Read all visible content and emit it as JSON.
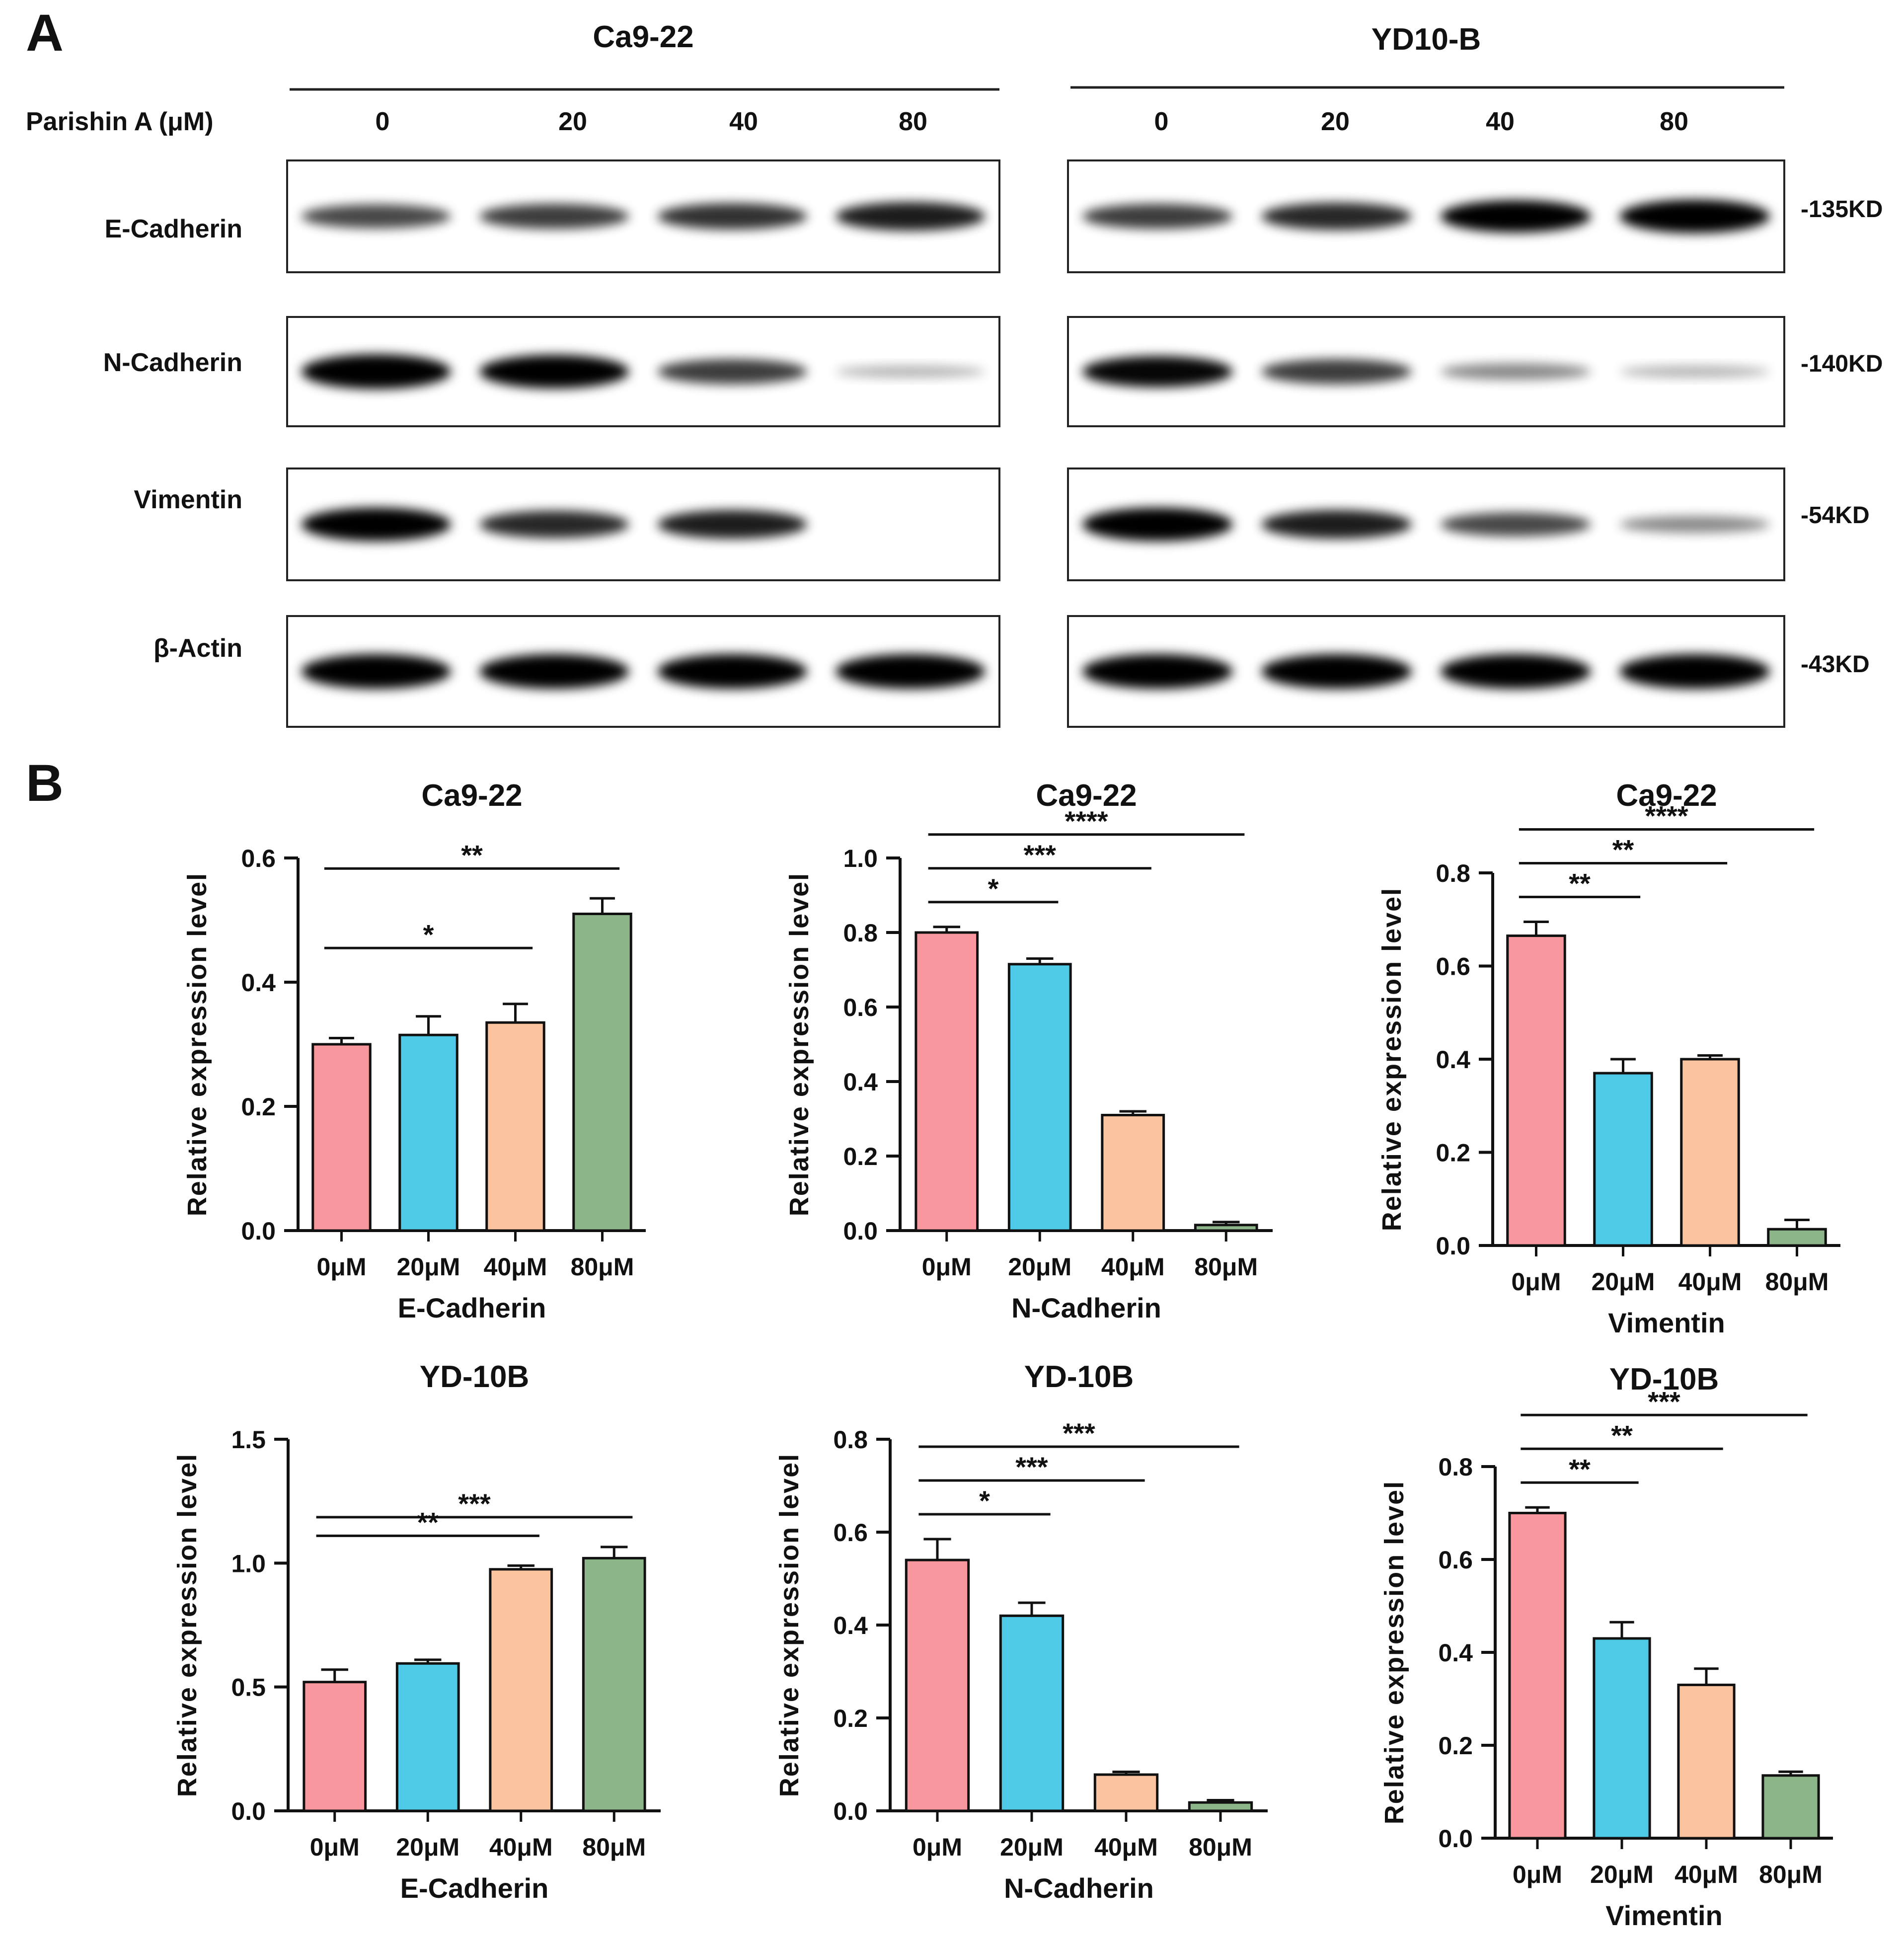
{
  "panel_a": {
    "label": "A",
    "treatment_label": "Parishin A (μM)",
    "cell_lines": [
      {
        "name": "Ca9-22",
        "doses": [
          "0",
          "20",
          "40",
          "80"
        ]
      },
      {
        "name": "YD10-B",
        "doses": [
          "0",
          "20",
          "40",
          "80"
        ]
      }
    ],
    "rows": [
      {
        "protein": "E-Cadherin",
        "weight": "-135KD",
        "band_intensity": [
          [
            0.55,
            0.6,
            0.65,
            0.75
          ],
          [
            0.6,
            0.7,
            0.9,
            0.95
          ]
        ]
      },
      {
        "protein": "N-Cadherin",
        "weight": "-140KD",
        "band_intensity": [
          [
            1.0,
            0.95,
            0.6,
            0.05
          ],
          [
            0.85,
            0.6,
            0.25,
            0.05
          ]
        ]
      },
      {
        "protein": "Vimentin",
        "weight": "-54KD",
        "band_intensity": [
          [
            0.95,
            0.7,
            0.75,
            0.0
          ],
          [
            0.95,
            0.75,
            0.55,
            0.25
          ]
        ]
      },
      {
        "protein": "β-Actin",
        "weight": "-43KD",
        "band_intensity": [
          [
            1.0,
            1.0,
            1.0,
            1.0
          ],
          [
            1.0,
            1.0,
            1.0,
            1.0
          ]
        ]
      }
    ]
  },
  "panel_b": {
    "label": "B",
    "colors": [
      "#f8979d",
      "#4ec9e6",
      "#fcc49e",
      "#8db58a"
    ]
  },
  "chart_data": [
    {
      "type": "bar",
      "title": "Ca9-22",
      "xlabel": "E-Cadherin",
      "ylabel": "Relative expression level",
      "categories": [
        "0μM",
        "20μM",
        "40μM",
        "80μM"
      ],
      "values": [
        0.3,
        0.315,
        0.335,
        0.51
      ],
      "errors": [
        0.01,
        0.03,
        0.03,
        0.025
      ],
      "ylim": [
        0,
        0.6
      ],
      "yticks": [
        "0.0",
        "0.2",
        "0.4",
        "0.6"
      ],
      "significance": [
        {
          "from": 0,
          "to": 2,
          "label": "*"
        },
        {
          "from": 0,
          "to": 3,
          "label": "**"
        }
      ]
    },
    {
      "type": "bar",
      "title": "Ca9-22",
      "xlabel": "N-Cadherin",
      "ylabel": "Relative expression level",
      "categories": [
        "0μM",
        "20μM",
        "40μM",
        "80μM"
      ],
      "values": [
        0.8,
        0.715,
        0.31,
        0.015
      ],
      "errors": [
        0.015,
        0.015,
        0.01,
        0.008
      ],
      "ylim": [
        0,
        1.0
      ],
      "yticks": [
        "0.0",
        "0.2",
        "0.4",
        "0.6",
        "0.8",
        "1.0"
      ],
      "significance": [
        {
          "from": 0,
          "to": 1,
          "label": "*"
        },
        {
          "from": 0,
          "to": 2,
          "label": "***"
        },
        {
          "from": 0,
          "to": 3,
          "label": "****"
        }
      ]
    },
    {
      "type": "bar",
      "title": "Ca9-22",
      "xlabel": "Vimentin",
      "ylabel": "Relative expression level",
      "categories": [
        "0μM",
        "20μM",
        "40μM",
        "80μM"
      ],
      "values": [
        0.665,
        0.37,
        0.4,
        0.035
      ],
      "errors": [
        0.03,
        0.03,
        0.008,
        0.02
      ],
      "ylim": [
        0,
        0.8
      ],
      "yticks": [
        "0.0",
        "0.2",
        "0.4",
        "0.6",
        "0.8"
      ],
      "significance": [
        {
          "from": 0,
          "to": 1,
          "label": "**"
        },
        {
          "from": 0,
          "to": 2,
          "label": "**"
        },
        {
          "from": 0,
          "to": 3,
          "label": "****"
        }
      ]
    },
    {
      "type": "bar",
      "title": "YD-10B",
      "xlabel": "E-Cadherin",
      "ylabel": "Relative expression level",
      "categories": [
        "0μM",
        "20μM",
        "40μM",
        "80μM"
      ],
      "values": [
        0.52,
        0.595,
        0.975,
        1.02
      ],
      "errors": [
        0.05,
        0.015,
        0.015,
        0.045
      ],
      "ylim": [
        0,
        1.5
      ],
      "yticks": [
        "0.0",
        "0.5",
        "1.0",
        "1.5"
      ],
      "significance": [
        {
          "from": 0,
          "to": 2,
          "label": "**"
        },
        {
          "from": 0,
          "to": 3,
          "label": "***"
        }
      ]
    },
    {
      "type": "bar",
      "title": "YD-10B",
      "xlabel": "N-Cadherin",
      "ylabel": "Relative expression level",
      "categories": [
        "0μM",
        "20μM",
        "40μM",
        "80μM"
      ],
      "values": [
        0.54,
        0.42,
        0.078,
        0.018
      ],
      "errors": [
        0.045,
        0.028,
        0.006,
        0.005
      ],
      "ylim": [
        0,
        0.8
      ],
      "yticks": [
        "0.0",
        "0.2",
        "0.4",
        "0.6",
        "0.8"
      ],
      "significance": [
        {
          "from": 0,
          "to": 1,
          "label": "*"
        },
        {
          "from": 0,
          "to": 2,
          "label": "***"
        },
        {
          "from": 0,
          "to": 3,
          "label": "***"
        }
      ]
    },
    {
      "type": "bar",
      "title": "YD-10B",
      "xlabel": "Vimentin",
      "ylabel": "Relative expression level",
      "categories": [
        "0μM",
        "20μM",
        "40μM",
        "80μM"
      ],
      "values": [
        0.7,
        0.43,
        0.33,
        0.135
      ],
      "errors": [
        0.012,
        0.035,
        0.035,
        0.008
      ],
      "ylim": [
        0,
        0.8
      ],
      "yticks": [
        "0.0",
        "0.2",
        "0.4",
        "0.6",
        "0.8"
      ],
      "significance": [
        {
          "from": 0,
          "to": 1,
          "label": "**"
        },
        {
          "from": 0,
          "to": 2,
          "label": "**"
        },
        {
          "from": 0,
          "to": 3,
          "label": "***"
        }
      ]
    }
  ]
}
